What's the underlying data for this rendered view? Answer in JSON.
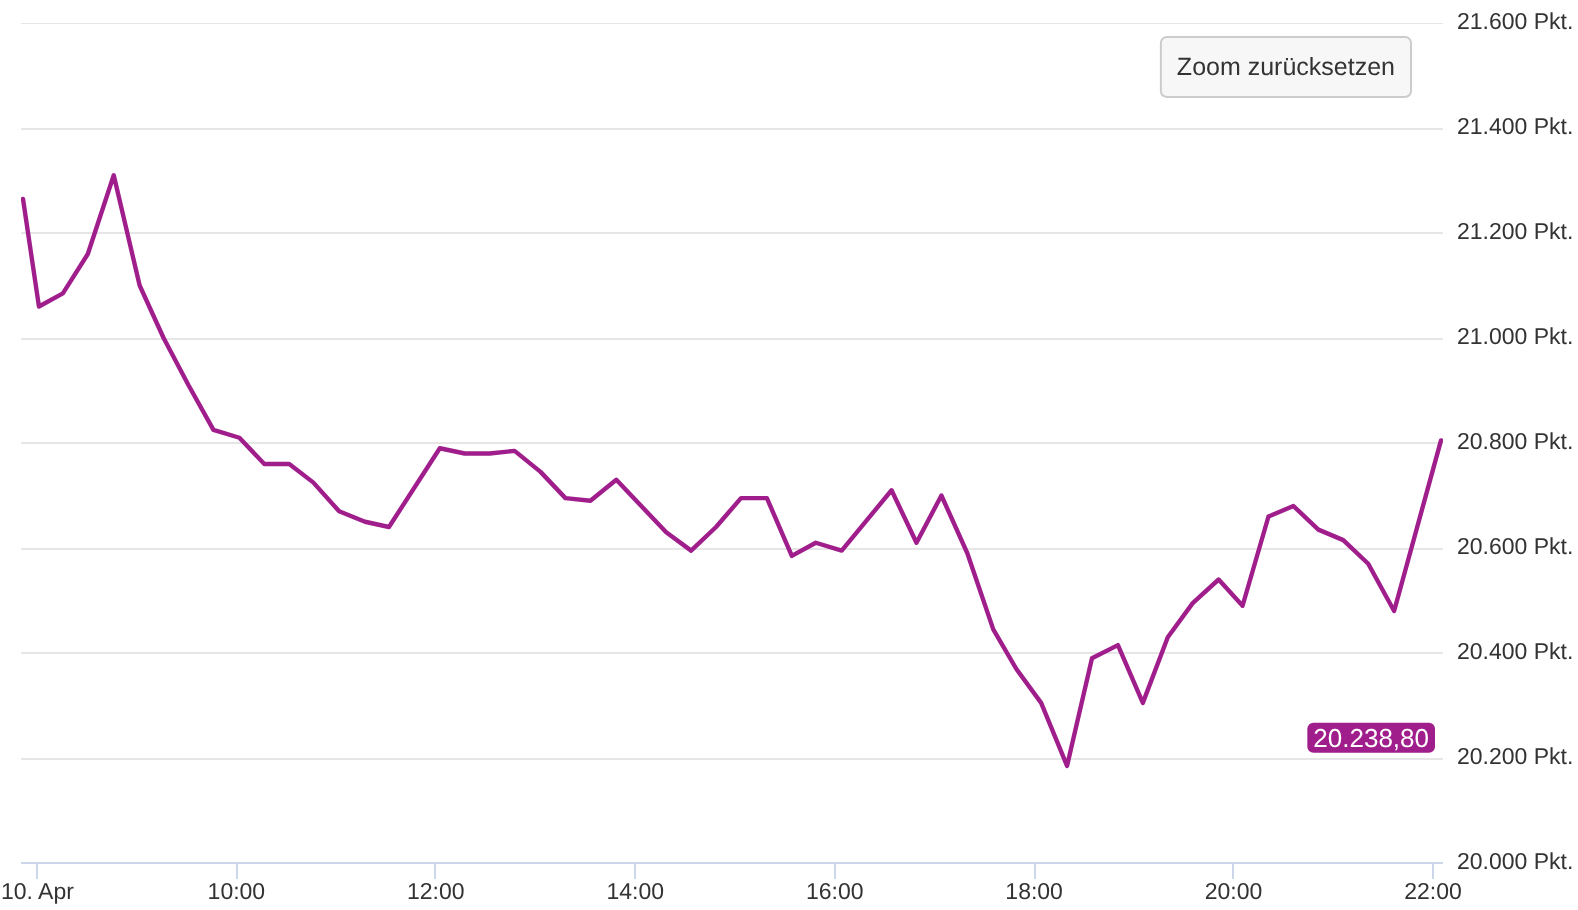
{
  "chart_data": {
    "type": "line",
    "x": [
      7.86,
      8.02,
      8.26,
      8.51,
      8.77,
      9.03,
      9.27,
      9.52,
      9.77,
      10.03,
      10.28,
      10.53,
      10.77,
      11.03,
      11.29,
      11.53,
      12.04,
      12.29,
      12.54,
      12.79,
      13.05,
      13.3,
      13.55,
      13.81,
      14.31,
      14.56,
      14.81,
      15.06,
      15.32,
      15.57,
      15.81,
      16.07,
      16.57,
      16.82,
      17.07,
      17.33,
      17.59,
      17.82,
      18.07,
      18.33,
      18.58,
      18.84,
      19.09,
      19.34,
      19.59,
      19.85,
      20.09,
      20.35,
      20.6,
      20.85,
      21.1,
      21.35,
      21.61,
      22.08
    ],
    "series": [
      {
        "color": "#a01e8c",
        "values": [
          21265,
          21060,
          21085,
          21160,
          21310,
          21100,
          21000,
          20910,
          20825,
          20810,
          20760,
          20760,
          20725,
          20670,
          20650,
          20640,
          20790,
          20780,
          20780,
          20785,
          20745,
          20695,
          20690,
          20730,
          20630,
          20595,
          20640,
          20695,
          20695,
          20585,
          20610,
          20595,
          20710,
          20610,
          20700,
          20590,
          20445,
          20370,
          20305,
          20185,
          20390,
          20415,
          20305,
          20430,
          20495,
          20540,
          20490,
          20660,
          20680,
          20635,
          20615,
          20570,
          20480,
          20805
        ]
      }
    ],
    "xlim": [
      7.84,
      22.1
    ],
    "xticks": [
      {
        "value": 8,
        "label": "10. Apr"
      },
      {
        "value": 10,
        "label": "10:00"
      },
      {
        "value": 12,
        "label": "12:00"
      },
      {
        "value": 14,
        "label": "14:00"
      },
      {
        "value": 16,
        "label": "16:00"
      },
      {
        "value": 18,
        "label": "18:00"
      },
      {
        "value": 20,
        "label": "20:00"
      },
      {
        "value": 22,
        "label": "22:00"
      }
    ],
    "ylim": [
      20000,
      21600
    ],
    "yticks": [
      {
        "value": 20000,
        "label": "20.000 Pkt."
      },
      {
        "value": 20200,
        "label": "20.200 Pkt."
      },
      {
        "value": 20400,
        "label": "20.400 Pkt."
      },
      {
        "value": 20600,
        "label": "20.600 Pkt."
      },
      {
        "value": 20800,
        "label": "20.800 Pkt."
      },
      {
        "value": 21000,
        "label": "21.000 Pkt."
      },
      {
        "value": 21200,
        "label": "21.200 Pkt."
      },
      {
        "value": 21400,
        "label": "21.400 Pkt."
      },
      {
        "value": 21600,
        "label": "21.600 Pkt."
      }
    ],
    "grid": "y",
    "line_style": "solid",
    "annotations": [
      "Zoom zurücksetzen",
      "20.238,80"
    ]
  }
}
